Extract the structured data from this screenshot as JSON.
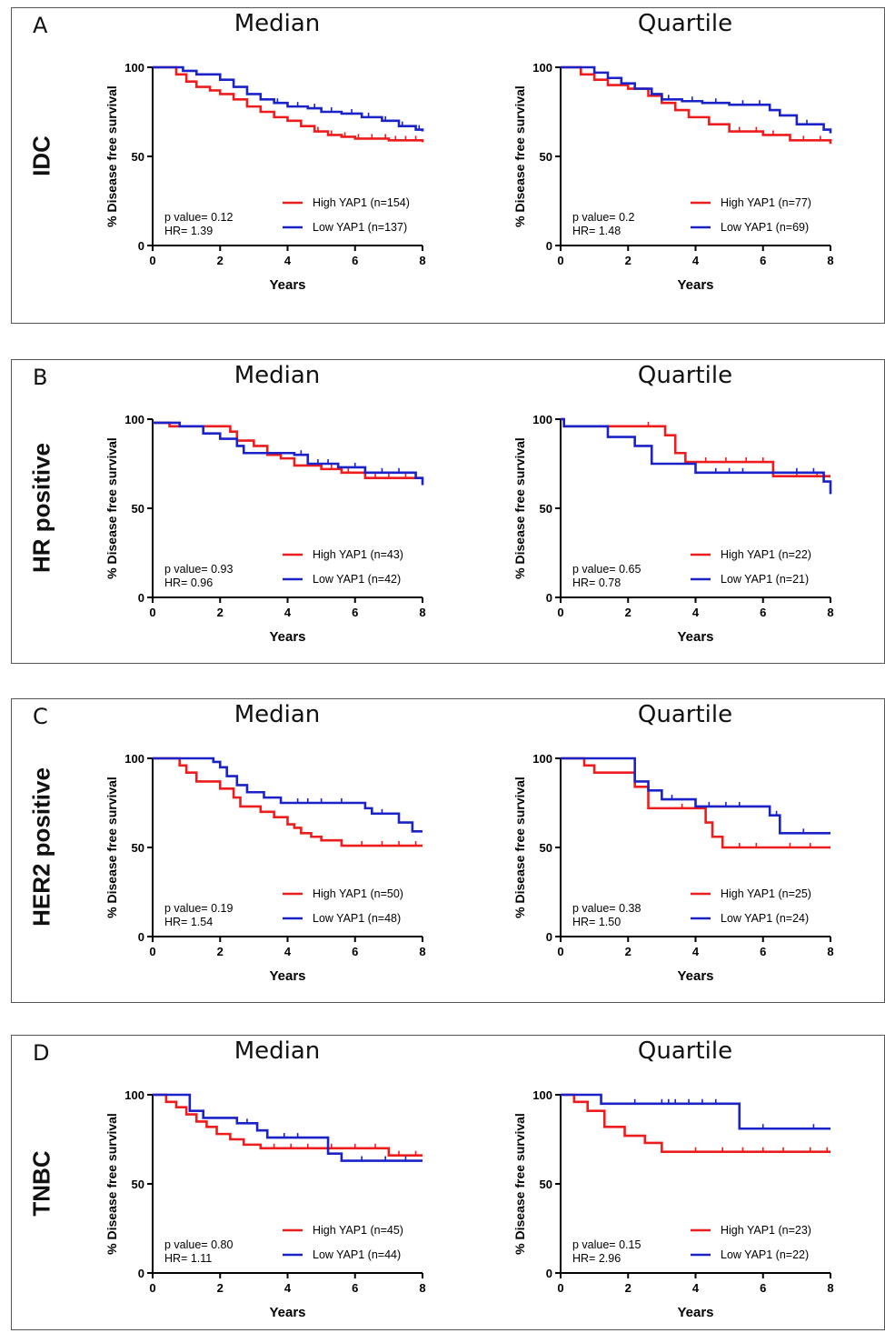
{
  "colors": {
    "high": "#ee1c1c",
    "low": "#1a22c8",
    "axis": "#000000"
  },
  "rows": [
    {
      "letter": "A",
      "label": "IDC",
      "charts": [
        {
          "title": "Median",
          "p_text": "p value= 0.12",
          "hr_text": "HR= 1.39",
          "legend_high": "High YAP1 (n=154)",
          "legend_low": "Low YAP1 (n=137)"
        },
        {
          "title": "Quartile",
          "p_text": "p value= 0.2",
          "hr_text": "HR= 1.48",
          "legend_high": "High YAP1 (n=77)",
          "legend_low": "Low YAP1 (n=69)"
        }
      ]
    },
    {
      "letter": "B",
      "label": "HR positive",
      "charts": [
        {
          "title": "Median",
          "p_text": "p value= 0.93",
          "hr_text": "HR= 0.96",
          "legend_high": "High YAP1 (n=43)",
          "legend_low": "Low YAP1 (n=42)"
        },
        {
          "title": "Quartile",
          "p_text": "p value= 0.65",
          "hr_text": "HR= 0.78",
          "legend_high": "High YAP1 (n=22)",
          "legend_low": "Low YAP1 (n=21)"
        }
      ]
    },
    {
      "letter": "C",
      "label": "HER2 positive",
      "charts": [
        {
          "title": "Median",
          "p_text": "p value= 0.19",
          "hr_text": "HR= 1.54",
          "legend_high": "High YAP1 (n=50)",
          "legend_low": "Low YAP1 (n=48)"
        },
        {
          "title": "Quartile",
          "p_text": "p value= 0.38",
          "hr_text": "HR= 1.50",
          "legend_high": "High YAP1 (n=25)",
          "legend_low": "Low YAP1 (n=24)"
        }
      ]
    },
    {
      "letter": "D",
      "label": "TNBC",
      "charts": [
        {
          "title": "Median",
          "p_text": "p value= 0.80",
          "hr_text": "HR= 1.11",
          "legend_high": "High YAP1 (n=45)",
          "legend_low": "Low YAP1 (n=44)"
        },
        {
          "title": "Quartile",
          "p_text": "p value= 0.15",
          "hr_text": "HR= 2.96",
          "legend_high": "High YAP1 (n=23)",
          "legend_low": "Low YAP1 (n=22)"
        }
      ]
    }
  ],
  "chart_data": [
    {
      "type": "line",
      "panel": "A",
      "title": "Median",
      "xlabel": "Years",
      "ylabel": "% Disease free survival",
      "xlim": [
        0,
        8
      ],
      "ylim": [
        0,
        100
      ],
      "xticks": [
        0,
        2,
        4,
        6,
        8
      ],
      "yticks": [
        0,
        50,
        100
      ],
      "series": [
        {
          "name": "High YAP1 (n=154)",
          "x": [
            0,
            0.7,
            1.0,
            1.3,
            1.7,
            2.0,
            2.4,
            2.8,
            3.2,
            3.6,
            4.0,
            4.4,
            4.8,
            5.2,
            5.6,
            6.0,
            7.0,
            8.0
          ],
          "y": [
            100,
            96,
            92,
            89,
            87,
            85,
            82,
            78,
            75,
            72,
            70,
            67,
            64,
            62,
            61,
            60,
            59,
            58
          ],
          "censor_x": [
            4.9,
            5.3,
            5.7,
            6.1,
            6.5,
            6.9,
            7.2,
            7.5,
            7.8
          ]
        },
        {
          "name": "Low YAP1 (n=137)",
          "x": [
            0,
            0.9,
            1.3,
            2.0,
            2.4,
            2.8,
            3.2,
            3.6,
            4.0,
            4.6,
            5.0,
            5.6,
            6.2,
            6.8,
            7.3,
            7.8,
            8.0
          ],
          "y": [
            100,
            98,
            96,
            93,
            89,
            85,
            82,
            80,
            78,
            77,
            75,
            74,
            72,
            70,
            67,
            65,
            64
          ],
          "censor_x": [
            3.7,
            4.3,
            4.8,
            5.3,
            5.9,
            6.4,
            6.9,
            7.4,
            7.9
          ]
        }
      ]
    },
    {
      "type": "line",
      "panel": "A",
      "title": "Quartile",
      "xlabel": "Years",
      "ylabel": "% Disease free survival",
      "xlim": [
        0,
        8
      ],
      "ylim": [
        0,
        100
      ],
      "xticks": [
        0,
        2,
        4,
        6,
        8
      ],
      "yticks": [
        0,
        50,
        100
      ],
      "series": [
        {
          "name": "High YAP1 (n=77)",
          "x": [
            0,
            0.6,
            1.0,
            1.4,
            2.0,
            2.6,
            3.0,
            3.4,
            3.8,
            4.4,
            5.0,
            6.0,
            6.8,
            8.0
          ],
          "y": [
            100,
            96,
            93,
            90,
            88,
            84,
            80,
            76,
            72,
            68,
            64,
            62,
            59,
            57
          ],
          "censor_x": [
            5.3,
            5.8,
            6.3,
            7.2,
            7.7
          ]
        },
        {
          "name": "Low YAP1 (n=69)",
          "x": [
            0,
            1.0,
            1.4,
            1.8,
            2.2,
            2.7,
            3.0,
            3.6,
            4.2,
            5.0,
            6.0,
            6.2,
            6.5,
            7.0,
            7.8,
            8.0
          ],
          "y": [
            100,
            97,
            94,
            91,
            88,
            85,
            82,
            81,
            80,
            79,
            79,
            76,
            73,
            68,
            65,
            63
          ],
          "censor_x": [
            3.2,
            3.9,
            4.6,
            5.4,
            5.9,
            7.3
          ]
        }
      ]
    },
    {
      "type": "line",
      "panel": "B",
      "title": "Median",
      "xlabel": "Years",
      "ylabel": "% Disease free survival",
      "xlim": [
        0,
        8
      ],
      "ylim": [
        0,
        100
      ],
      "xticks": [
        0,
        2,
        4,
        6,
        8
      ],
      "yticks": [
        0,
        50,
        100
      ],
      "series": [
        {
          "name": "High YAP1 (n=43)",
          "x": [
            0,
            0.5,
            2.3,
            2.5,
            3.0,
            3.4,
            3.8,
            4.2,
            5.0,
            5.6,
            6.3,
            8.0
          ],
          "y": [
            98,
            96,
            93,
            88,
            85,
            80,
            78,
            74,
            72,
            70,
            67,
            67
          ],
          "censor_x": [
            5.3,
            5.8,
            6.6,
            7.0,
            7.5
          ]
        },
        {
          "name": "Low YAP1 (n=42)",
          "x": [
            0,
            0.8,
            1.5,
            2.0,
            2.5,
            2.7,
            4.2,
            4.6,
            5.5,
            6.3,
            7.8,
            8.0
          ],
          "y": [
            98,
            96,
            92,
            89,
            85,
            81,
            80,
            75,
            73,
            70,
            67,
            63
          ],
          "censor_x": [
            4.4,
            4.9,
            5.2,
            6.0,
            6.8,
            7.3
          ]
        }
      ]
    },
    {
      "type": "line",
      "panel": "B",
      "title": "Quartile",
      "xlabel": "Years",
      "ylabel": "% Disease free survival",
      "xlim": [
        0,
        8
      ],
      "ylim": [
        0,
        100
      ],
      "xticks": [
        0,
        2,
        4,
        6,
        8
      ],
      "yticks": [
        0,
        50,
        100
      ],
      "series": [
        {
          "name": "High YAP1 (n=22)",
          "x": [
            0,
            0.1,
            3.1,
            3.4,
            3.7,
            6.3,
            8.0
          ],
          "y": [
            100,
            96,
            91,
            81,
            76,
            68,
            68
          ],
          "censor_x": [
            2.6,
            4.3,
            4.9,
            5.5,
            6.0,
            7.0,
            7.6
          ]
        },
        {
          "name": "Low YAP1 (n=21)",
          "x": [
            0,
            0.1,
            1.4,
            2.2,
            2.7,
            4.0,
            6.4,
            7.8,
            8.0
          ],
          "y": [
            100,
            96,
            90,
            85,
            75,
            70,
            70,
            65,
            58
          ],
          "censor_x": [
            4.6,
            5.0,
            5.4,
            7.0,
            7.5
          ]
        }
      ]
    },
    {
      "type": "line",
      "panel": "C",
      "title": "Median",
      "xlabel": "Years",
      "ylabel": "% Disease free survival",
      "xlim": [
        0,
        8
      ],
      "ylim": [
        0,
        100
      ],
      "xticks": [
        0,
        2,
        4,
        6,
        8
      ],
      "yticks": [
        0,
        50,
        100
      ],
      "series": [
        {
          "name": "High YAP1 (n=50)",
          "x": [
            0,
            0.8,
            1.0,
            1.3,
            2.0,
            2.4,
            2.6,
            3.2,
            3.6,
            4.0,
            4.2,
            4.4,
            4.7,
            5.0,
            5.6,
            8.0
          ],
          "y": [
            100,
            96,
            92,
            87,
            83,
            78,
            73,
            70,
            67,
            63,
            61,
            58,
            56,
            54,
            51,
            51
          ],
          "censor_x": [
            6.2,
            6.8,
            7.3,
            7.8
          ]
        },
        {
          "name": "Low YAP1 (n=48)",
          "x": [
            0,
            1.8,
            2.0,
            2.2,
            2.5,
            2.8,
            3.3,
            3.8,
            6.0,
            6.3,
            6.5,
            7.3,
            7.7,
            8.0
          ],
          "y": [
            100,
            98,
            95,
            90,
            85,
            81,
            78,
            75,
            75,
            72,
            69,
            64,
            59,
            59
          ],
          "censor_x": [
            3.8,
            4.3,
            4.6,
            5.0,
            5.6,
            6.8
          ]
        }
      ]
    },
    {
      "type": "line",
      "panel": "C",
      "title": "Quartile",
      "xlabel": "Years",
      "ylabel": "% Disease free survival",
      "xlim": [
        0,
        8
      ],
      "ylim": [
        0,
        100
      ],
      "xticks": [
        0,
        2,
        4,
        6,
        8
      ],
      "yticks": [
        0,
        50,
        100
      ],
      "series": [
        {
          "name": "High YAP1 (n=25)",
          "x": [
            0,
            0.7,
            1.0,
            2.0,
            2.2,
            2.6,
            4.1,
            4.3,
            4.5,
            4.8,
            8.0
          ],
          "y": [
            100,
            96,
            92,
            92,
            84,
            72,
            72,
            64,
            56,
            50,
            50
          ],
          "censor_x": [
            3.6,
            5.3,
            5.8,
            6.8,
            7.4
          ]
        },
        {
          "name": "Low YAP1 (n=24)",
          "x": [
            0,
            2.0,
            2.2,
            2.6,
            3.0,
            4.0,
            5.9,
            6.2,
            6.5,
            8.0
          ],
          "y": [
            100,
            100,
            87,
            82,
            77,
            73,
            73,
            68,
            58,
            58
          ],
          "censor_x": [
            3.3,
            4.4,
            4.9,
            5.3,
            6.4,
            7.2
          ]
        }
      ]
    },
    {
      "type": "line",
      "panel": "D",
      "title": "Median",
      "xlabel": "Years",
      "ylabel": "% Disease free survival",
      "xlim": [
        0,
        8
      ],
      "ylim": [
        0,
        100
      ],
      "xticks": [
        0,
        2,
        4,
        6,
        8
      ],
      "yticks": [
        0,
        50,
        100
      ],
      "series": [
        {
          "name": "High YAP1 (n=45)",
          "x": [
            0,
            0.4,
            0.7,
            1.0,
            1.3,
            1.6,
            1.9,
            2.3,
            2.7,
            3.2,
            3.8,
            5.0,
            7.0,
            8.0
          ],
          "y": [
            100,
            96,
            93,
            89,
            85,
            82,
            78,
            75,
            72,
            70,
            70,
            70,
            66,
            66
          ],
          "censor_x": [
            3.6,
            4.1,
            4.6,
            5.3,
            6.0,
            6.6,
            7.3,
            7.8
          ]
        },
        {
          "name": "Low YAP1 (n=44)",
          "x": [
            0,
            0.9,
            1.1,
            1.5,
            2.5,
            3.1,
            3.4,
            4.6,
            5.2,
            5.6,
            8.0
          ],
          "y": [
            100,
            100,
            91,
            87,
            84,
            80,
            76,
            76,
            67,
            63,
            63
          ],
          "censor_x": [
            2.8,
            3.9,
            4.3,
            6.2,
            6.9,
            7.5
          ]
        }
      ]
    },
    {
      "type": "line",
      "panel": "D",
      "title": "Quartile",
      "xlabel": "Years",
      "ylabel": "% Disease free survival",
      "xlim": [
        0,
        8
      ],
      "ylim": [
        0,
        100
      ],
      "xticks": [
        0,
        2,
        4,
        6,
        8
      ],
      "yticks": [
        0,
        50,
        100
      ],
      "series": [
        {
          "name": "High YAP1 (n=23)",
          "x": [
            0,
            0.4,
            0.8,
            1.3,
            1.9,
            2.5,
            3.0,
            8.0
          ],
          "y": [
            100,
            96,
            91,
            82,
            77,
            73,
            68,
            68
          ],
          "censor_x": [
            4.0,
            4.8,
            5.4,
            6.0,
            6.6,
            7.4,
            7.9
          ]
        },
        {
          "name": "Low YAP1 (n=22)",
          "x": [
            0,
            1.0,
            1.2,
            5.2,
            5.3,
            8.0
          ],
          "y": [
            100,
            100,
            95,
            95,
            81,
            81
          ],
          "censor_x": [
            2.2,
            3.0,
            3.2,
            3.4,
            3.8,
            4.2,
            4.6,
            6.0,
            7.5
          ]
        }
      ]
    }
  ]
}
